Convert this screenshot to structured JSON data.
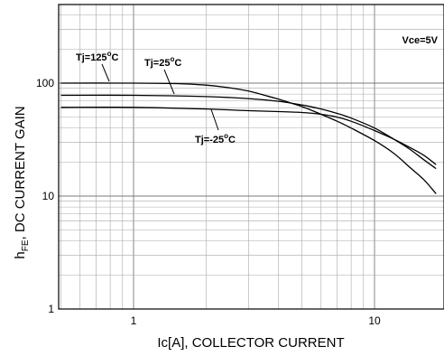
{
  "chart_data": {
    "type": "line",
    "xscale": "log",
    "yscale": "log",
    "xlim": [
      0.5,
      18
    ],
    "ylim": [
      1,
      500
    ],
    "grid": true,
    "xlabel": "Ic[A], COLLECTOR CURRENT",
    "ylabel": {
      "main": "h",
      "sub": "FE",
      "rest": ", DC CURRENT GAIN"
    },
    "x_ticks": [
      {
        "value": 1,
        "label": "1"
      },
      {
        "value": 10,
        "label": "10"
      }
    ],
    "y_ticks": [
      {
        "value": 1,
        "label": "1"
      },
      {
        "value": 10,
        "label": "10"
      },
      {
        "value": 100,
        "label": "100"
      }
    ],
    "condition": "Vce=5V",
    "series": [
      {
        "name": "Tj=125°C",
        "points": [
          [
            0.5,
            100
          ],
          [
            1,
            100
          ],
          [
            1.5,
            99
          ],
          [
            2,
            96
          ],
          [
            2.5,
            91
          ],
          [
            3,
            85
          ],
          [
            3.5,
            78
          ],
          [
            4,
            72
          ],
          [
            5,
            62
          ],
          [
            6,
            53
          ],
          [
            7,
            46
          ],
          [
            8,
            40
          ],
          [
            10,
            31
          ],
          [
            12,
            24
          ],
          [
            14,
            18
          ],
          [
            16,
            14
          ],
          [
            18,
            10.5
          ]
        ]
      },
      {
        "name": "Tj=25°C",
        "points": [
          [
            0.5,
            78
          ],
          [
            1,
            78
          ],
          [
            2,
            76
          ],
          [
            3,
            73
          ],
          [
            4,
            69
          ],
          [
            5,
            64
          ],
          [
            6,
            59
          ],
          [
            7,
            54
          ],
          [
            8,
            49
          ],
          [
            10,
            40
          ],
          [
            12,
            32
          ],
          [
            14,
            26
          ],
          [
            16,
            21
          ],
          [
            18,
            17.5
          ]
        ]
      },
      {
        "name": "Tj=-25°C",
        "points": [
          [
            0.5,
            61
          ],
          [
            1,
            61
          ],
          [
            2,
            59
          ],
          [
            3,
            57
          ],
          [
            4,
            56
          ],
          [
            5,
            55
          ],
          [
            6,
            53
          ],
          [
            7,
            50
          ],
          [
            8,
            46
          ],
          [
            10,
            38
          ],
          [
            12,
            32
          ],
          [
            14,
            27
          ],
          [
            16,
            23
          ],
          [
            18,
            19
          ]
        ]
      }
    ],
    "annotations": [
      {
        "series": "Tj=125°C",
        "label_main": "Tj=125",
        "label_deg": "o",
        "label_unit": "C"
      },
      {
        "series": "Tj=25°C",
        "label_main": "Tj=25",
        "label_deg": "o",
        "label_unit": "C"
      },
      {
        "series": "Tj=-25°C",
        "label_main": "Tj=-25",
        "label_deg": "o",
        "label_unit": "C"
      }
    ]
  }
}
